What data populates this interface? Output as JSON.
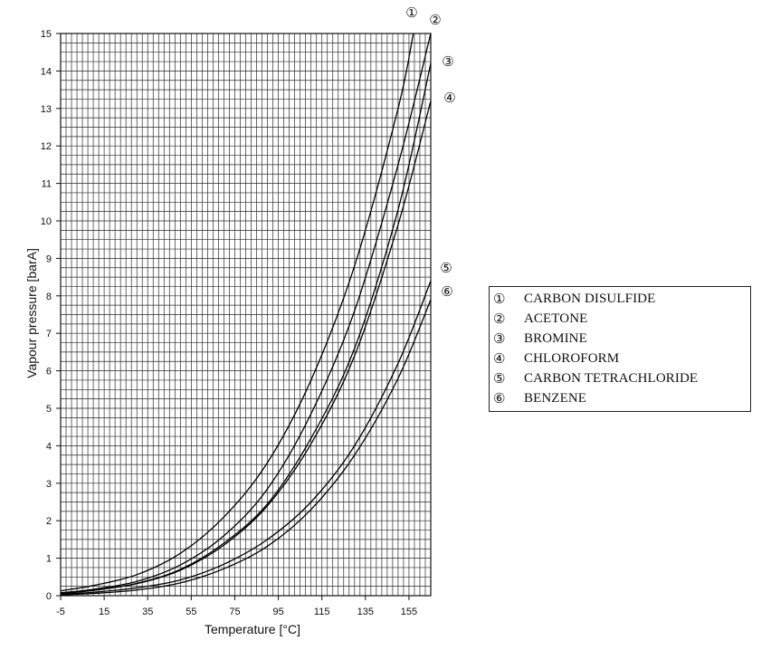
{
  "chart_data": {
    "type": "line",
    "xlabel": "Temperature [°C]",
    "ylabel": "Vapour pressure [barA]",
    "xlim": [
      -5,
      165
    ],
    "ylim": [
      0,
      15
    ],
    "x_ticks": [
      "-5",
      "15",
      "35",
      "55",
      "75",
      "95",
      "115",
      "135",
      "155"
    ],
    "y_ticks": [
      "0",
      "1",
      "2",
      "3",
      "4",
      "5",
      "6",
      "7",
      "8",
      "9",
      "10",
      "11",
      "12",
      "13",
      "14",
      "15"
    ],
    "grid": true,
    "legend_position": "right",
    "series": [
      {
        "marker": "①",
        "name": "CARBON DISULFIDE",
        "x": [
          -5,
          10,
          30,
          50,
          70,
          90,
          110,
          130,
          150,
          157
        ],
        "y": [
          0.13,
          0.27,
          0.56,
          1.13,
          2.1,
          3.55,
          5.75,
          8.8,
          13.0,
          15.0
        ]
      },
      {
        "marker": "②",
        "name": "ACETONE",
        "x": [
          -5,
          10,
          30,
          50,
          70,
          90,
          110,
          130,
          150,
          165
        ],
        "y": [
          0.08,
          0.17,
          0.38,
          0.82,
          1.6,
          2.85,
          4.85,
          7.6,
          11.5,
          15.0
        ]
      },
      {
        "marker": "③",
        "name": "BROMINE",
        "x": [
          -5,
          10,
          30,
          50,
          70,
          90,
          110,
          130,
          150,
          165
        ],
        "y": [
          0.06,
          0.14,
          0.33,
          0.7,
          1.4,
          2.45,
          4.2,
          6.6,
          10.3,
          14.2
        ]
      },
      {
        "marker": "④",
        "name": "CHLOROFORM",
        "x": [
          -5,
          10,
          30,
          50,
          70,
          90,
          110,
          130,
          150,
          165
        ],
        "y": [
          0.07,
          0.15,
          0.32,
          0.68,
          1.35,
          2.4,
          4.05,
          6.4,
          9.9,
          13.2
        ]
      },
      {
        "marker": "⑤",
        "name": "CARBON TETRACHLORIDE",
        "x": [
          -5,
          10,
          30,
          50,
          70,
          90,
          110,
          130,
          150,
          165
        ],
        "y": [
          0.04,
          0.09,
          0.21,
          0.42,
          0.84,
          1.5,
          2.5,
          4.0,
          6.2,
          8.4
        ]
      },
      {
        "marker": "⑥",
        "name": "BENZENE",
        "x": [
          -5,
          10,
          30,
          50,
          70,
          90,
          110,
          130,
          150,
          165
        ],
        "y": [
          0.02,
          0.06,
          0.15,
          0.34,
          0.72,
          1.32,
          2.3,
          3.75,
          5.8,
          7.9
        ]
      }
    ]
  }
}
